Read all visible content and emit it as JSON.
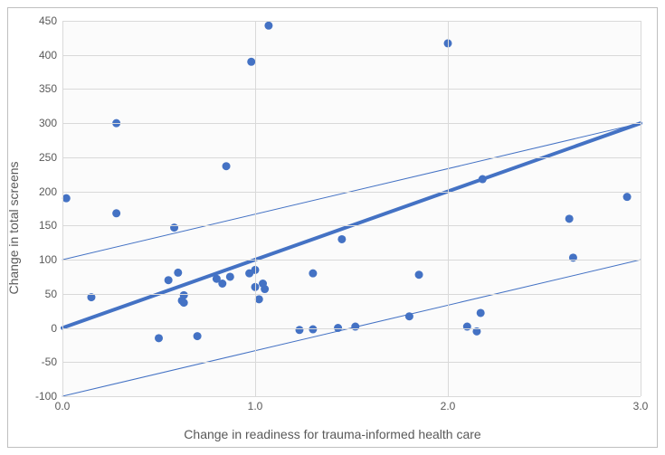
{
  "chart": {
    "type": "scatter",
    "background_color": "#ffffff",
    "plot_background_color": "#fbfbfb",
    "border_color": "#bfbfbf",
    "grid_color": "#d9d9d9",
    "tick_fontsize": 12,
    "label_fontsize": 14,
    "text_color": "#595959",
    "ylabel": "Change in total screens",
    "xlabel": "Change in readiness for trauma-informed health care",
    "xlim": [
      0.0,
      3.0
    ],
    "ylim": [
      -100,
      450
    ],
    "xtick_labels": [
      "0.0",
      "1.0",
      "2.0",
      "3.0"
    ],
    "xtick_values": [
      0.0,
      1.0,
      2.0,
      3.0
    ],
    "ytick_labels": [
      "-100",
      "-50",
      "0",
      "50",
      "100",
      "150",
      "200",
      "250",
      "300",
      "350",
      "400",
      "450"
    ],
    "ytick_values": [
      -100,
      -50,
      0,
      50,
      100,
      150,
      200,
      250,
      300,
      350,
      400,
      450
    ],
    "marker": {
      "shape": "circle",
      "radius": 4.5,
      "fill": "#4472c4",
      "stroke": "none"
    },
    "points": [
      {
        "x": 0.02,
        "y": 190
      },
      {
        "x": 0.15,
        "y": 45
      },
      {
        "x": 0.28,
        "y": 300
      },
      {
        "x": 0.28,
        "y": 168
      },
      {
        "x": 0.5,
        "y": -15
      },
      {
        "x": 0.55,
        "y": 70
      },
      {
        "x": 0.58,
        "y": 147
      },
      {
        "x": 0.6,
        "y": 81
      },
      {
        "x": 0.62,
        "y": 40
      },
      {
        "x": 0.63,
        "y": 48
      },
      {
        "x": 0.63,
        "y": 37
      },
      {
        "x": 0.7,
        "y": -12
      },
      {
        "x": 0.8,
        "y": 72
      },
      {
        "x": 0.83,
        "y": 65
      },
      {
        "x": 0.87,
        "y": 75
      },
      {
        "x": 0.85,
        "y": 237
      },
      {
        "x": 0.97,
        "y": 80
      },
      {
        "x": 0.98,
        "y": 390
      },
      {
        "x": 1.0,
        "y": 85
      },
      {
        "x": 1.0,
        "y": 60
      },
      {
        "x": 1.02,
        "y": 42
      },
      {
        "x": 1.04,
        "y": 65
      },
      {
        "x": 1.05,
        "y": 57
      },
      {
        "x": 1.07,
        "y": 443
      },
      {
        "x": 1.23,
        "y": -3
      },
      {
        "x": 1.3,
        "y": -2
      },
      {
        "x": 1.3,
        "y": 80
      },
      {
        "x": 1.43,
        "y": 0
      },
      {
        "x": 1.45,
        "y": 130
      },
      {
        "x": 1.52,
        "y": 2
      },
      {
        "x": 1.8,
        "y": 17
      },
      {
        "x": 1.85,
        "y": 78
      },
      {
        "x": 2.0,
        "y": 417
      },
      {
        "x": 2.1,
        "y": 2
      },
      {
        "x": 2.15,
        "y": -5
      },
      {
        "x": 2.17,
        "y": 22
      },
      {
        "x": 2.18,
        "y": 218
      },
      {
        "x": 2.63,
        "y": 160
      },
      {
        "x": 2.65,
        "y": 103
      },
      {
        "x": 2.93,
        "y": 192
      }
    ],
    "trend_line": {
      "x1": 0.0,
      "y1": 0,
      "x2": 3.0,
      "y2": 300,
      "color": "#4472c4",
      "width": 4
    },
    "upper_line": {
      "x1": 0.0,
      "y1": 100,
      "x2": 3.0,
      "y2": 300,
      "color": "#4472c4",
      "width": 1
    },
    "lower_line": {
      "x1": 0.0,
      "y1": -100,
      "x2": 3.0,
      "y2": 100,
      "color": "#4472c4",
      "width": 1
    }
  }
}
